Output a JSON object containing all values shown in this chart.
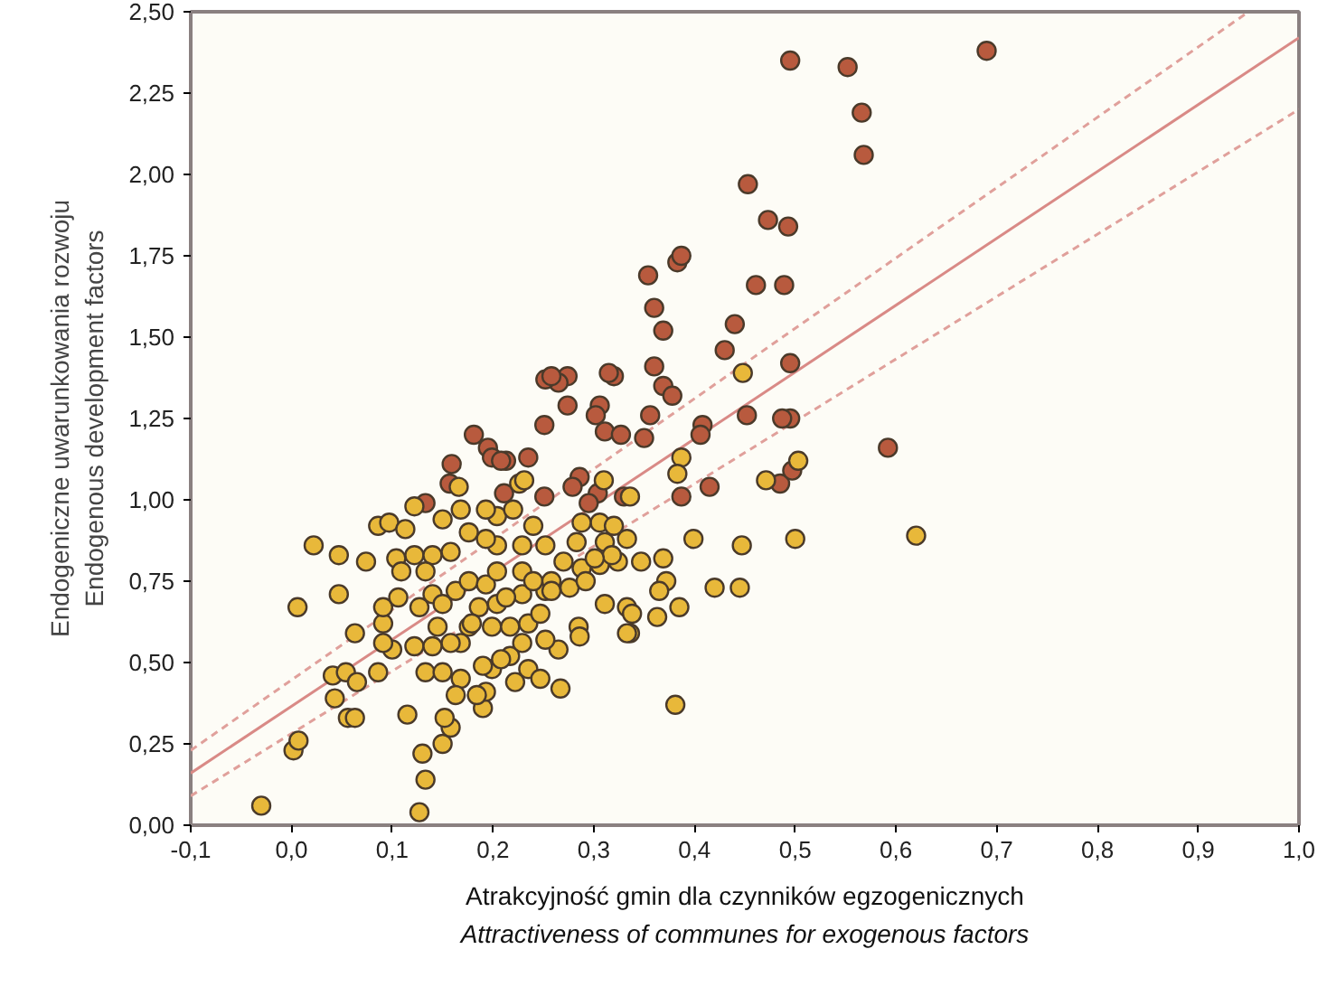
{
  "chart_data": {
    "type": "scatter",
    "xlabel": "Atrakcyjność gmin dla czynników egzogenicznych\nAttractiveness of communes for exogenous factors",
    "ylabel": "Endogeniczne uwarunkowania rozwoju\nEndogenous development factors",
    "xlim": [
      -0.1,
      1.0
    ],
    "ylim": [
      0,
      2.5
    ],
    "xticks": [
      {
        "value": -0.1,
        "label": "-0,1"
      },
      {
        "value": 0,
        "label": "0,0"
      },
      {
        "value": 0.1,
        "label": "0,1"
      },
      {
        "value": 0.2,
        "label": "0,2"
      },
      {
        "value": 0.3,
        "label": "0,3"
      },
      {
        "value": 0.4,
        "label": "0,4"
      },
      {
        "value": 0.5,
        "label": "0,5"
      },
      {
        "value": 0.6,
        "label": "0,6"
      },
      {
        "value": 0.7,
        "label": "0,7"
      },
      {
        "value": 0.8,
        "label": "0,8"
      },
      {
        "value": 0.9,
        "label": "0,9"
      },
      {
        "value": 1.0,
        "label": "1,0"
      }
    ],
    "yticks": [
      {
        "value": 0,
        "label": "0,00"
      },
      {
        "value": 0.25,
        "label": "0,25"
      },
      {
        "value": 0.5,
        "label": "0,50"
      },
      {
        "value": 0.75,
        "label": "0,75"
      },
      {
        "value": 1.0,
        "label": "1,00"
      },
      {
        "value": 1.25,
        "label": "1,25"
      },
      {
        "value": 1.5,
        "label": "1,50"
      },
      {
        "value": 1.75,
        "label": "1,75"
      },
      {
        "value": 2.0,
        "label": "2,00"
      },
      {
        "value": 2.25,
        "label": "2,25"
      },
      {
        "value": 2.5,
        "label": "2,50"
      }
    ],
    "grid": false,
    "marker": "circle",
    "series": [
      {
        "type": "line",
        "marker": "none",
        "color": "#d98a86",
        "line_style": "solid",
        "x": [
          -0.1,
          1.0
        ],
        "values": [
          0.16,
          2.42
        ]
      },
      {
        "type": "line",
        "marker": "none",
        "color": "#e0a09b",
        "line_style": "dashed",
        "x": [
          -0.1,
          0.95
        ],
        "values": [
          0.23,
          2.5
        ]
      },
      {
        "type": "line",
        "marker": "none",
        "color": "#e0a09b",
        "line_style": "dashed",
        "x": [
          -0.1,
          1.0
        ],
        "values": [
          0.09,
          2.2
        ]
      },
      {
        "color": "#b85a3e",
        "x": [
          0.495,
          0.552,
          0.69,
          0.566,
          0.568,
          0.453,
          0.473,
          0.493,
          0.383,
          0.354,
          0.387,
          0.461,
          0.489,
          0.36,
          0.369,
          0.44,
          0.43,
          0.36,
          0.369,
          0.378,
          0.495,
          0.274,
          0.265,
          0.306,
          0.356,
          0.408,
          0.495,
          0.311,
          0.327,
          0.35,
          0.406,
          0.592,
          0.252,
          0.258,
          0.274,
          0.302,
          0.32,
          0.452,
          0.487,
          0.181,
          0.195,
          0.213,
          0.235,
          0.251,
          0.286,
          0.304,
          0.295,
          0.279,
          0.251,
          0.387,
          0.415,
          0.485,
          0.497,
          0.159,
          0.157,
          0.133,
          0.211,
          0.315,
          0.33,
          0.199,
          0.208
        ],
        "values": [
          2.35,
          2.33,
          2.38,
          2.19,
          2.06,
          1.97,
          1.86,
          1.84,
          1.73,
          1.69,
          1.75,
          1.66,
          1.66,
          1.59,
          1.52,
          1.54,
          1.46,
          1.41,
          1.35,
          1.32,
          1.42,
          1.38,
          1.36,
          1.29,
          1.26,
          1.23,
          1.25,
          1.21,
          1.2,
          1.19,
          1.2,
          1.16,
          1.37,
          1.38,
          1.29,
          1.26,
          1.38,
          1.26,
          1.25,
          1.2,
          1.16,
          1.12,
          1.13,
          1.23,
          1.07,
          1.02,
          0.99,
          1.04,
          1.01,
          1.01,
          1.04,
          1.05,
          1.09,
          1.11,
          1.05,
          0.99,
          1.02,
          1.39,
          1.01,
          1.13,
          1.12
        ]
      },
      {
        "color": "#e8b83a",
        "x": [
          -0.03,
          0.127,
          0.133,
          0.13,
          0.002,
          0.007,
          0.006,
          0.022,
          0.047,
          0.047,
          0.063,
          0.041,
          0.054,
          0.065,
          0.043,
          0.056,
          0.063,
          0.115,
          0.15,
          0.158,
          0.152,
          0.086,
          0.1,
          0.091,
          0.091,
          0.091,
          0.106,
          0.127,
          0.14,
          0.122,
          0.133,
          0.15,
          0.168,
          0.163,
          0.19,
          0.193,
          0.199,
          0.217,
          0.235,
          0.247,
          0.222,
          0.267,
          0.265,
          0.285,
          0.286,
          0.336,
          0.333,
          0.311,
          0.276,
          0.252,
          0.229,
          0.204,
          0.186,
          0.176,
          0.168,
          0.158,
          0.145,
          0.14,
          0.15,
          0.163,
          0.176,
          0.193,
          0.204,
          0.229,
          0.24,
          0.258,
          0.27,
          0.288,
          0.306,
          0.324,
          0.347,
          0.311,
          0.333,
          0.306,
          0.32,
          0.336,
          0.31,
          0.24,
          0.252,
          0.229,
          0.204,
          0.193,
          0.176,
          0.204,
          0.22,
          0.193,
          0.168,
          0.15,
          0.122,
          0.086,
          0.097,
          0.113,
          0.074,
          0.104,
          0.122,
          0.14,
          0.158,
          0.109,
          0.133,
          0.166,
          0.226,
          0.231,
          0.387,
          0.383,
          0.399,
          0.447,
          0.42,
          0.445,
          0.471,
          0.503,
          0.381,
          0.369,
          0.372,
          0.365,
          0.385,
          0.363,
          0.333,
          0.338,
          0.292,
          0.318,
          0.301,
          0.283,
          0.288,
          0.258,
          0.199,
          0.217,
          0.235,
          0.247,
          0.252,
          0.229,
          0.208,
          0.19,
          0.184,
          0.448,
          0.62,
          0.5,
          0.213,
          0.179
        ],
        "values": [
          0.06,
          0.04,
          0.14,
          0.22,
          0.23,
          0.26,
          0.67,
          0.86,
          0.83,
          0.71,
          0.59,
          0.46,
          0.47,
          0.44,
          0.39,
          0.33,
          0.33,
          0.34,
          0.25,
          0.3,
          0.33,
          0.47,
          0.54,
          0.56,
          0.62,
          0.67,
          0.7,
          0.67,
          0.71,
          0.55,
          0.47,
          0.47,
          0.45,
          0.4,
          0.36,
          0.41,
          0.48,
          0.52,
          0.48,
          0.45,
          0.44,
          0.42,
          0.54,
          0.61,
          0.58,
          0.59,
          0.67,
          0.68,
          0.73,
          0.72,
          0.71,
          0.68,
          0.67,
          0.61,
          0.56,
          0.56,
          0.61,
          0.55,
          0.68,
          0.72,
          0.75,
          0.74,
          0.78,
          0.78,
          0.75,
          0.75,
          0.81,
          0.79,
          0.8,
          0.81,
          0.81,
          0.87,
          0.88,
          0.93,
          0.92,
          1.01,
          1.06,
          0.92,
          0.86,
          0.86,
          0.86,
          0.88,
          0.9,
          0.95,
          0.97,
          0.97,
          0.97,
          0.94,
          0.98,
          0.92,
          0.93,
          0.91,
          0.81,
          0.82,
          0.83,
          0.83,
          0.84,
          0.78,
          0.78,
          1.04,
          1.05,
          1.06,
          1.13,
          1.08,
          0.88,
          0.86,
          0.73,
          0.73,
          1.06,
          1.12,
          0.37,
          0.82,
          0.75,
          0.72,
          0.67,
          0.64,
          0.59,
          0.65,
          0.75,
          0.83,
          0.82,
          0.87,
          0.93,
          0.72,
          0.61,
          0.61,
          0.62,
          0.65,
          0.57,
          0.56,
          0.51,
          0.49,
          0.4,
          1.39,
          0.89,
          0.88,
          0.7,
          0.62
        ]
      }
    ]
  }
}
